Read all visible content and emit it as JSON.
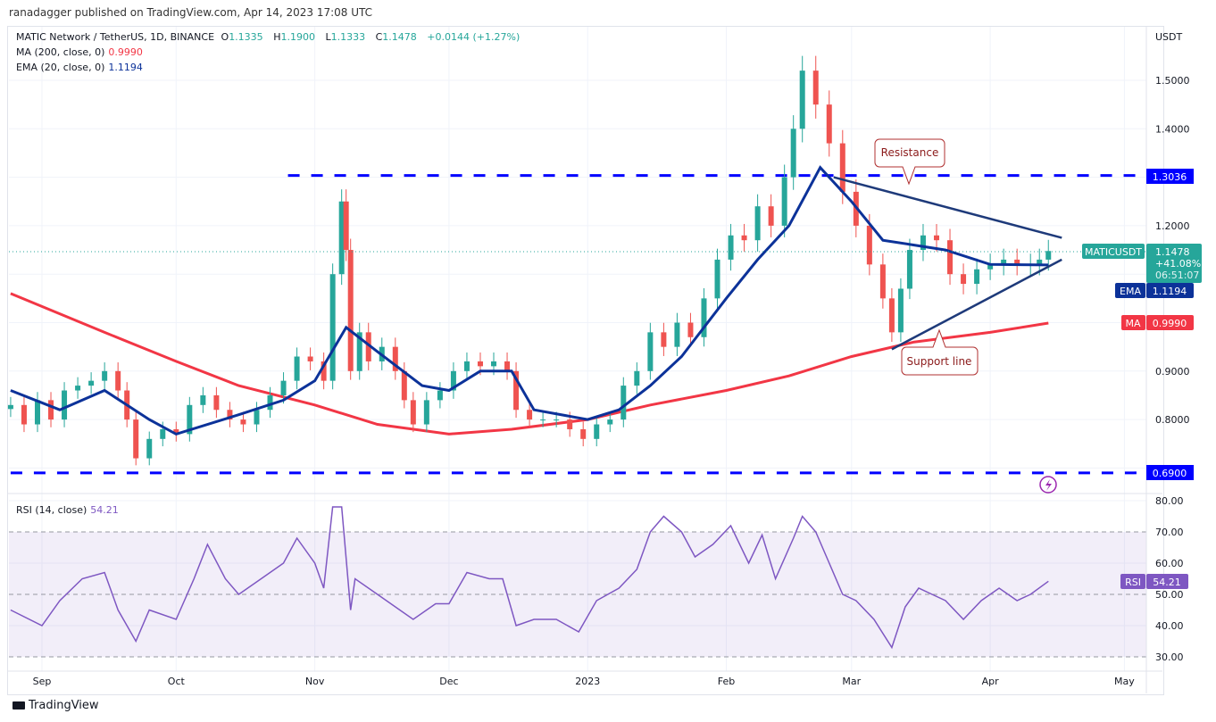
{
  "header": {
    "published": "ranadagger published on TradingView.com, Apr 14, 2023 17:08 UTC"
  },
  "legend": {
    "symbol": "MATIC Network / TetherUS, 1D, BINANCE",
    "o_label": "O",
    "o": "1.1335",
    "h_label": "H",
    "h": "1.1900",
    "l_label": "L",
    "l": "1.1333",
    "c_label": "C",
    "c": "1.1478",
    "change": "+0.0144 (+1.27%)",
    "ma_label": "MA (200, close, 0)",
    "ma_value": "0.9990",
    "ema_label": "EMA (20, close, 0)",
    "ema_value": "1.1194",
    "rsi_label": "RSI (14, close)",
    "rsi_value": "54.21"
  },
  "price_axis": {
    "unit": "USDT",
    "ticks": [
      "1.5000",
      "1.4000",
      "1.2000",
      "0.9000",
      "0.8000"
    ],
    "tick_values": [
      1.5,
      1.4,
      1.2,
      0.9,
      0.8
    ]
  },
  "rsi_axis": {
    "ticks": [
      "80.00",
      "70.00",
      "60.00",
      "50.00",
      "40.00",
      "30.00"
    ],
    "tick_values": [
      80,
      70,
      60,
      50,
      40,
      30
    ]
  },
  "time_axis": {
    "labels": [
      "Sep",
      "Oct",
      "Nov",
      "Dec",
      "2023",
      "Feb",
      "Mar",
      "Apr",
      "May"
    ],
    "dates": [
      "2022-09-01",
      "2022-10-01",
      "2022-11-01",
      "2022-12-01",
      "2023-01-01",
      "2023-02-01",
      "2023-03-01",
      "2023-04-01",
      "2023-05-01"
    ]
  },
  "tags": {
    "symbol": "MATICUSDT",
    "price": "1.1478",
    "change_pct": "+41.08%",
    "countdown": "06:51:07",
    "ema_name": "EMA",
    "ema": "1.1194",
    "ma_name": "MA",
    "ma": "0.9990",
    "rsi_name": "RSI",
    "rsi": "54.21",
    "resistance_level": "1.3036",
    "support_level": "0.6900"
  },
  "annotations": {
    "resistance": "Resistance",
    "support": "Support line"
  },
  "colors": {
    "up": "#26a69a",
    "down": "#ef5350",
    "ema": "#0c3299",
    "ma": "#f23645",
    "rsi": "#7e57c2",
    "hline": "#0000ff",
    "trend": "#1e3a7a"
  },
  "footer": {
    "brand": "TradingView"
  },
  "chart_data": {
    "type": "candlestick",
    "symbol": "MATICUSDT",
    "ylim": [
      0.68,
      1.58
    ],
    "candles": [
      [
        "2022-08-25",
        0.83
      ],
      [
        "2022-08-28",
        0.79
      ],
      [
        "2022-08-31",
        0.84
      ],
      [
        "2022-09-03",
        0.8
      ],
      [
        "2022-09-06",
        0.86
      ],
      [
        "2022-09-09",
        0.87
      ],
      [
        "2022-09-12",
        0.88
      ],
      [
        "2022-09-15",
        0.9
      ],
      [
        "2022-09-18",
        0.86
      ],
      [
        "2022-09-20",
        0.8
      ],
      [
        "2022-09-22",
        0.72
      ],
      [
        "2022-09-25",
        0.76
      ],
      [
        "2022-09-28",
        0.78
      ],
      [
        "2022-10-01",
        0.77
      ],
      [
        "2022-10-04",
        0.83
      ],
      [
        "2022-10-07",
        0.85
      ],
      [
        "2022-10-10",
        0.82
      ],
      [
        "2022-10-13",
        0.8
      ],
      [
        "2022-10-16",
        0.79
      ],
      [
        "2022-10-19",
        0.82
      ],
      [
        "2022-10-22",
        0.85
      ],
      [
        "2022-10-25",
        0.88
      ],
      [
        "2022-10-28",
        0.93
      ],
      [
        "2022-10-31",
        0.92
      ],
      [
        "2022-11-03",
        0.88
      ],
      [
        "2022-11-05",
        1.1
      ],
      [
        "2022-11-07",
        1.25
      ],
      [
        "2022-11-08",
        1.15
      ],
      [
        "2022-11-09",
        0.9
      ],
      [
        "2022-11-11",
        0.98
      ],
      [
        "2022-11-13",
        0.92
      ],
      [
        "2022-11-16",
        0.95
      ],
      [
        "2022-11-19",
        0.9
      ],
      [
        "2022-11-21",
        0.84
      ],
      [
        "2022-11-23",
        0.79
      ],
      [
        "2022-11-26",
        0.84
      ],
      [
        "2022-11-29",
        0.86
      ],
      [
        "2022-12-02",
        0.9
      ],
      [
        "2022-12-05",
        0.92
      ],
      [
        "2022-12-08",
        0.91
      ],
      [
        "2022-12-11",
        0.92
      ],
      [
        "2022-12-14",
        0.9
      ],
      [
        "2022-12-16",
        0.82
      ],
      [
        "2022-12-19",
        0.8
      ],
      [
        "2022-12-22",
        0.8
      ],
      [
        "2022-12-25",
        0.8
      ],
      [
        "2022-12-28",
        0.78
      ],
      [
        "2022-12-31",
        0.76
      ],
      [
        "2023-01-03",
        0.79
      ],
      [
        "2023-01-06",
        0.8
      ],
      [
        "2023-01-09",
        0.87
      ],
      [
        "2023-01-12",
        0.9
      ],
      [
        "2023-01-15",
        0.98
      ],
      [
        "2023-01-18",
        0.95
      ],
      [
        "2023-01-21",
        1.0
      ],
      [
        "2023-01-24",
        0.97
      ],
      [
        "2023-01-27",
        1.05
      ],
      [
        "2023-01-30",
        1.13
      ],
      [
        "2023-02-02",
        1.18
      ],
      [
        "2023-02-05",
        1.17
      ],
      [
        "2023-02-08",
        1.24
      ],
      [
        "2023-02-11",
        1.2
      ],
      [
        "2023-02-14",
        1.3
      ],
      [
        "2023-02-16",
        1.4
      ],
      [
        "2023-02-18",
        1.52
      ],
      [
        "2023-02-21",
        1.45
      ],
      [
        "2023-02-24",
        1.37
      ],
      [
        "2023-02-27",
        1.27
      ],
      [
        "2023-03-02",
        1.2
      ],
      [
        "2023-03-05",
        1.12
      ],
      [
        "2023-03-08",
        1.05
      ],
      [
        "2023-03-10",
        0.98
      ],
      [
        "2023-03-12",
        1.07
      ],
      [
        "2023-03-14",
        1.15
      ],
      [
        "2023-03-17",
        1.18
      ],
      [
        "2023-03-20",
        1.17
      ],
      [
        "2023-03-23",
        1.1
      ],
      [
        "2023-03-26",
        1.08
      ],
      [
        "2023-03-29",
        1.11
      ],
      [
        "2023-04-01",
        1.12
      ],
      [
        "2023-04-04",
        1.13
      ],
      [
        "2023-04-07",
        1.12
      ],
      [
        "2023-04-10",
        1.12
      ],
      [
        "2023-04-12",
        1.13
      ],
      [
        "2023-04-14",
        1.1478
      ]
    ],
    "ma200": [
      [
        "2022-08-25",
        1.06
      ],
      [
        "2022-09-15",
        0.98
      ],
      [
        "2022-10-01",
        0.92
      ],
      [
        "2022-10-15",
        0.87
      ],
      [
        "2022-11-01",
        0.83
      ],
      [
        "2022-11-15",
        0.79
      ],
      [
        "2022-12-01",
        0.77
      ],
      [
        "2022-12-15",
        0.78
      ],
      [
        "2023-01-01",
        0.8
      ],
      [
        "2023-01-15",
        0.83
      ],
      [
        "2023-02-01",
        0.86
      ],
      [
        "2023-02-15",
        0.89
      ],
      [
        "2023-03-01",
        0.93
      ],
      [
        "2023-03-15",
        0.96
      ],
      [
        "2023-04-01",
        0.98
      ],
      [
        "2023-04-14",
        0.999
      ]
    ],
    "ema20": [
      [
        "2022-08-25",
        0.86
      ],
      [
        "2022-09-05",
        0.82
      ],
      [
        "2022-09-15",
        0.86
      ],
      [
        "2022-09-25",
        0.8
      ],
      [
        "2022-10-01",
        0.77
      ],
      [
        "2022-10-15",
        0.81
      ],
      [
        "2022-10-25",
        0.84
      ],
      [
        "2022-11-01",
        0.88
      ],
      [
        "2022-11-08",
        0.99
      ],
      [
        "2022-11-15",
        0.94
      ],
      [
        "2022-11-25",
        0.87
      ],
      [
        "2022-12-01",
        0.86
      ],
      [
        "2022-12-08",
        0.9
      ],
      [
        "2022-12-15",
        0.9
      ],
      [
        "2022-12-20",
        0.82
      ],
      [
        "2023-01-01",
        0.8
      ],
      [
        "2023-01-08",
        0.82
      ],
      [
        "2023-01-15",
        0.87
      ],
      [
        "2023-01-22",
        0.93
      ],
      [
        "2023-02-01",
        1.05
      ],
      [
        "2023-02-08",
        1.13
      ],
      [
        "2023-02-15",
        1.2
      ],
      [
        "2023-02-22",
        1.32
      ],
      [
        "2023-03-01",
        1.25
      ],
      [
        "2023-03-08",
        1.17
      ],
      [
        "2023-03-15",
        1.16
      ],
      [
        "2023-03-22",
        1.15
      ],
      [
        "2023-04-01",
        1.12
      ],
      [
        "2023-04-14",
        1.119
      ]
    ],
    "rsi": [
      [
        "2022-08-25",
        45
      ],
      [
        "2022-09-01",
        40
      ],
      [
        "2022-09-05",
        48
      ],
      [
        "2022-09-10",
        55
      ],
      [
        "2022-09-15",
        57
      ],
      [
        "2022-09-18",
        45
      ],
      [
        "2022-09-22",
        35
      ],
      [
        "2022-09-25",
        45
      ],
      [
        "2022-10-01",
        42
      ],
      [
        "2022-10-05",
        55
      ],
      [
        "2022-10-08",
        66
      ],
      [
        "2022-10-12",
        55
      ],
      [
        "2022-10-15",
        50
      ],
      [
        "2022-10-20",
        55
      ],
      [
        "2022-10-25",
        60
      ],
      [
        "2022-10-28",
        68
      ],
      [
        "2022-11-01",
        60
      ],
      [
        "2022-11-03",
        52
      ],
      [
        "2022-11-05",
        78
      ],
      [
        "2022-11-07",
        78
      ],
      [
        "2022-11-09",
        45
      ],
      [
        "2022-11-10",
        55
      ],
      [
        "2022-11-15",
        50
      ],
      [
        "2022-11-20",
        45
      ],
      [
        "2022-11-23",
        42
      ],
      [
        "2022-11-28",
        47
      ],
      [
        "2022-12-01",
        47
      ],
      [
        "2022-12-05",
        57
      ],
      [
        "2022-12-10",
        55
      ],
      [
        "2022-12-13",
        55
      ],
      [
        "2022-12-16",
        40
      ],
      [
        "2022-12-20",
        42
      ],
      [
        "2022-12-25",
        42
      ],
      [
        "2022-12-30",
        38
      ],
      [
        "2023-01-03",
        48
      ],
      [
        "2023-01-08",
        52
      ],
      [
        "2023-01-12",
        58
      ],
      [
        "2023-01-15",
        70
      ],
      [
        "2023-01-18",
        75
      ],
      [
        "2023-01-22",
        70
      ],
      [
        "2023-01-25",
        62
      ],
      [
        "2023-01-29",
        66
      ],
      [
        "2023-02-02",
        72
      ],
      [
        "2023-02-06",
        60
      ],
      [
        "2023-02-09",
        69
      ],
      [
        "2023-02-12",
        55
      ],
      [
        "2023-02-16",
        68
      ],
      [
        "2023-02-18",
        75
      ],
      [
        "2023-02-21",
        70
      ],
      [
        "2023-02-24",
        60
      ],
      [
        "2023-02-27",
        50
      ],
      [
        "2023-03-02",
        48
      ],
      [
        "2023-03-06",
        42
      ],
      [
        "2023-03-10",
        33
      ],
      [
        "2023-03-13",
        46
      ],
      [
        "2023-03-16",
        52
      ],
      [
        "2023-03-19",
        50
      ],
      [
        "2023-03-22",
        48
      ],
      [
        "2023-03-26",
        42
      ],
      [
        "2023-03-30",
        48
      ],
      [
        "2023-04-03",
        52
      ],
      [
        "2023-04-07",
        48
      ],
      [
        "2023-04-10",
        50
      ],
      [
        "2023-04-14",
        54.21
      ]
    ],
    "rsi_band": [
      30,
      70
    ],
    "horizontal_levels": [
      {
        "price": 1.3036,
        "from": "2022-10-26"
      },
      {
        "price": 0.69,
        "from": "2022-08-25"
      }
    ],
    "trendlines": [
      {
        "name": "resistance",
        "from": [
          "2023-02-25",
          1.3
        ],
        "to": [
          "2023-04-17",
          1.175
        ]
      },
      {
        "name": "support",
        "from": [
          "2023-03-10",
          0.945
        ],
        "to": [
          "2023-04-17",
          1.13
        ]
      }
    ]
  }
}
